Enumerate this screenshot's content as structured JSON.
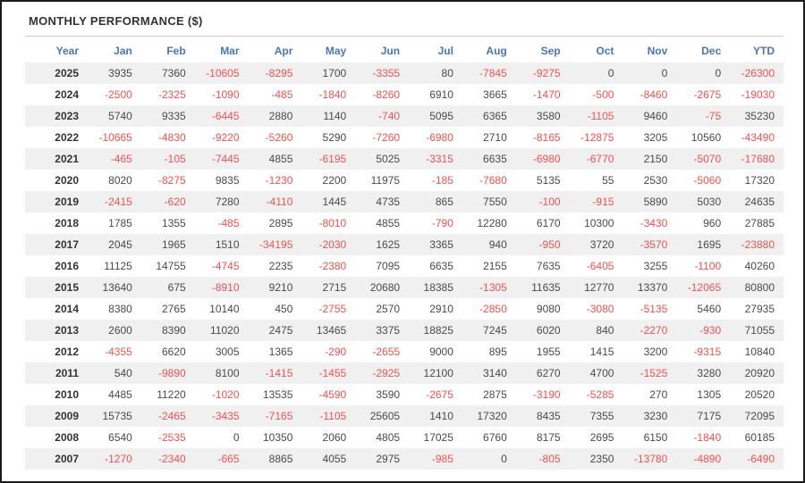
{
  "title": "MONTHLY PERFORMANCE ($)",
  "colors": {
    "accent": "#4a77b4",
    "negative": "#f0524f",
    "text": "#4a4a4a",
    "year": "#333333",
    "stripe": "#f0f0f0",
    "frame-border": "#1c1c1c",
    "divider": "#cccccc"
  },
  "chart_data": {
    "type": "table",
    "title": "MONTHLY PERFORMANCE ($)",
    "columns": [
      "Year",
      "Jan",
      "Feb",
      "Mar",
      "Apr",
      "May",
      "Jun",
      "Jul",
      "Aug",
      "Sep",
      "Oct",
      "Nov",
      "Dec",
      "YTD"
    ],
    "rows": [
      {
        "year": "2025",
        "values": [
          3935,
          7360,
          -10605,
          -8295,
          1700,
          -3355,
          80,
          -7845,
          -9275,
          0,
          0,
          0,
          -26300
        ]
      },
      {
        "year": "2024",
        "values": [
          -2500,
          -2325,
          -1090,
          -485,
          -1840,
          -8260,
          6910,
          3665,
          -1470,
          -500,
          -8460,
          -2675,
          -19030
        ]
      },
      {
        "year": "2023",
        "values": [
          5740,
          9335,
          -6445,
          2880,
          1140,
          -740,
          5095,
          6365,
          3580,
          -1105,
          9460,
          -75,
          35230
        ]
      },
      {
        "year": "2022",
        "values": [
          -10665,
          -4830,
          -9220,
          -5260,
          5290,
          -7260,
          -6980,
          2710,
          -8165,
          -12875,
          3205,
          10560,
          -43490
        ]
      },
      {
        "year": "2021",
        "values": [
          -465,
          -105,
          -7445,
          4855,
          -6195,
          5025,
          -3315,
          6635,
          -6980,
          -6770,
          2150,
          -5070,
          -17680
        ]
      },
      {
        "year": "2020",
        "values": [
          8020,
          -8275,
          9835,
          -1230,
          2200,
          11975,
          -185,
          -7680,
          5135,
          55,
          2530,
          -5060,
          17320
        ]
      },
      {
        "year": "2019",
        "values": [
          -2415,
          -620,
          7280,
          -4110,
          1445,
          4735,
          865,
          7550,
          -100,
          -915,
          5890,
          5030,
          24635
        ]
      },
      {
        "year": "2018",
        "values": [
          1785,
          1355,
          -485,
          2895,
          -8010,
          4855,
          -790,
          12280,
          6170,
          10300,
          -3430,
          960,
          27885
        ]
      },
      {
        "year": "2017",
        "values": [
          2045,
          1965,
          1510,
          -34195,
          -2030,
          1625,
          3365,
          940,
          -950,
          3720,
          -3570,
          1695,
          -23880
        ]
      },
      {
        "year": "2016",
        "values": [
          11125,
          14755,
          -4745,
          2235,
          -2380,
          7095,
          6635,
          2155,
          7635,
          -6405,
          3255,
          -1100,
          40260
        ]
      },
      {
        "year": "2015",
        "values": [
          13640,
          675,
          -8910,
          9210,
          2715,
          20680,
          18385,
          -1305,
          11635,
          12770,
          13370,
          -12065,
          80800
        ]
      },
      {
        "year": "2014",
        "values": [
          8380,
          2765,
          10140,
          450,
          -2755,
          2570,
          2910,
          -2850,
          9080,
          -3080,
          -5135,
          5460,
          27935
        ]
      },
      {
        "year": "2013",
        "values": [
          2600,
          8390,
          11020,
          2475,
          13465,
          3375,
          18825,
          7245,
          6020,
          840,
          -2270,
          -930,
          71055
        ]
      },
      {
        "year": "2012",
        "values": [
          -4355,
          6620,
          3005,
          1365,
          -290,
          -2655,
          9000,
          895,
          1955,
          1415,
          3200,
          -9315,
          10840
        ]
      },
      {
        "year": "2011",
        "values": [
          540,
          -9890,
          8100,
          -1415,
          -1455,
          -2925,
          12100,
          3140,
          6270,
          4700,
          -1525,
          3280,
          20920
        ]
      },
      {
        "year": "2010",
        "values": [
          4485,
          11220,
          -1020,
          13535,
          -4590,
          3590,
          -2675,
          2875,
          -3190,
          -5285,
          270,
          1305,
          20520
        ]
      },
      {
        "year": "2009",
        "values": [
          15735,
          -2465,
          -3435,
          -7165,
          -1105,
          25605,
          1410,
          17320,
          8435,
          7355,
          3230,
          7175,
          72095
        ]
      },
      {
        "year": "2008",
        "values": [
          6540,
          -2535,
          0,
          10350,
          2060,
          4805,
          17025,
          6760,
          8175,
          2695,
          6150,
          -1840,
          60185
        ]
      },
      {
        "year": "2007",
        "values": [
          -1270,
          -2340,
          -665,
          8865,
          4055,
          2975,
          -985,
          0,
          -805,
          2350,
          -13780,
          -4890,
          -6490
        ]
      }
    ]
  }
}
